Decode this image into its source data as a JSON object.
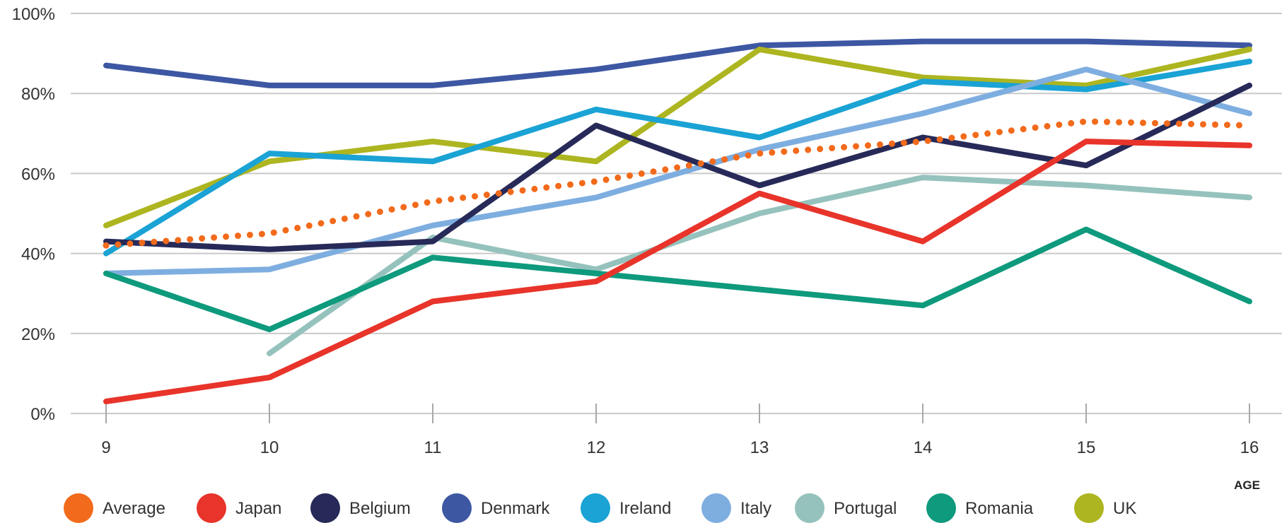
{
  "chart_data": {
    "type": "line",
    "title": "",
    "xlabel": "AGE",
    "ylabel": "",
    "x": [
      9,
      10,
      11,
      12,
      13,
      14,
      15,
      16
    ],
    "ylim": [
      0,
      100
    ],
    "y_ticks": [
      "0%",
      "20%",
      "40%",
      "60%",
      "80%",
      "100%"
    ],
    "y_tick_values": [
      0,
      20,
      40,
      60,
      80,
      100
    ],
    "grid": true,
    "legend_position": "bottom",
    "series": [
      {
        "name": "Denmark",
        "color": "#3d57a3",
        "values": [
          87,
          82,
          82,
          86,
          92,
          93,
          93,
          92
        ]
      },
      {
        "name": "UK",
        "color": "#adb520",
        "values": [
          47,
          63,
          68,
          63,
          91,
          84,
          82,
          91
        ]
      },
      {
        "name": "Ireland",
        "color": "#1aa3d4",
        "values": [
          40,
          65,
          63,
          76,
          69,
          83,
          81,
          88
        ]
      },
      {
        "name": "Italy",
        "color": "#7eaee0",
        "values": [
          35,
          36,
          47,
          54,
          66,
          75,
          86,
          75
        ]
      },
      {
        "name": "Portugal",
        "color": "#95c2bd",
        "values": [
          null,
          15,
          44,
          36,
          50,
          59,
          57,
          54
        ]
      },
      {
        "name": "Belgium",
        "color": "#272a58",
        "values": [
          43,
          41,
          43,
          72,
          57,
          69,
          62,
          82
        ]
      },
      {
        "name": "Romania",
        "color": "#0e9a7c",
        "values": [
          35,
          21,
          39,
          35,
          31,
          27,
          46,
          28
        ]
      },
      {
        "name": "Japan",
        "color": "#e8342a",
        "values": [
          3,
          9,
          28,
          33,
          55,
          43,
          68,
          67
        ]
      },
      {
        "name": "Average",
        "color": "#f26a1b",
        "dotted": true,
        "values": [
          42,
          45,
          53,
          58,
          65,
          68,
          73,
          72
        ]
      }
    ],
    "legend": [
      {
        "name": "Average",
        "color": "#f26a1b"
      },
      {
        "name": "Japan",
        "color": "#e8342a"
      },
      {
        "name": "Belgium",
        "color": "#272a58"
      },
      {
        "name": "Denmark",
        "color": "#3d57a3"
      },
      {
        "name": "Ireland",
        "color": "#1aa3d4"
      },
      {
        "name": "Italy",
        "color": "#7eaee0"
      },
      {
        "name": "Portugal",
        "color": "#95c2bd"
      },
      {
        "name": "Romania",
        "color": "#0e9a7c"
      },
      {
        "name": "UK",
        "color": "#adb520"
      }
    ]
  }
}
